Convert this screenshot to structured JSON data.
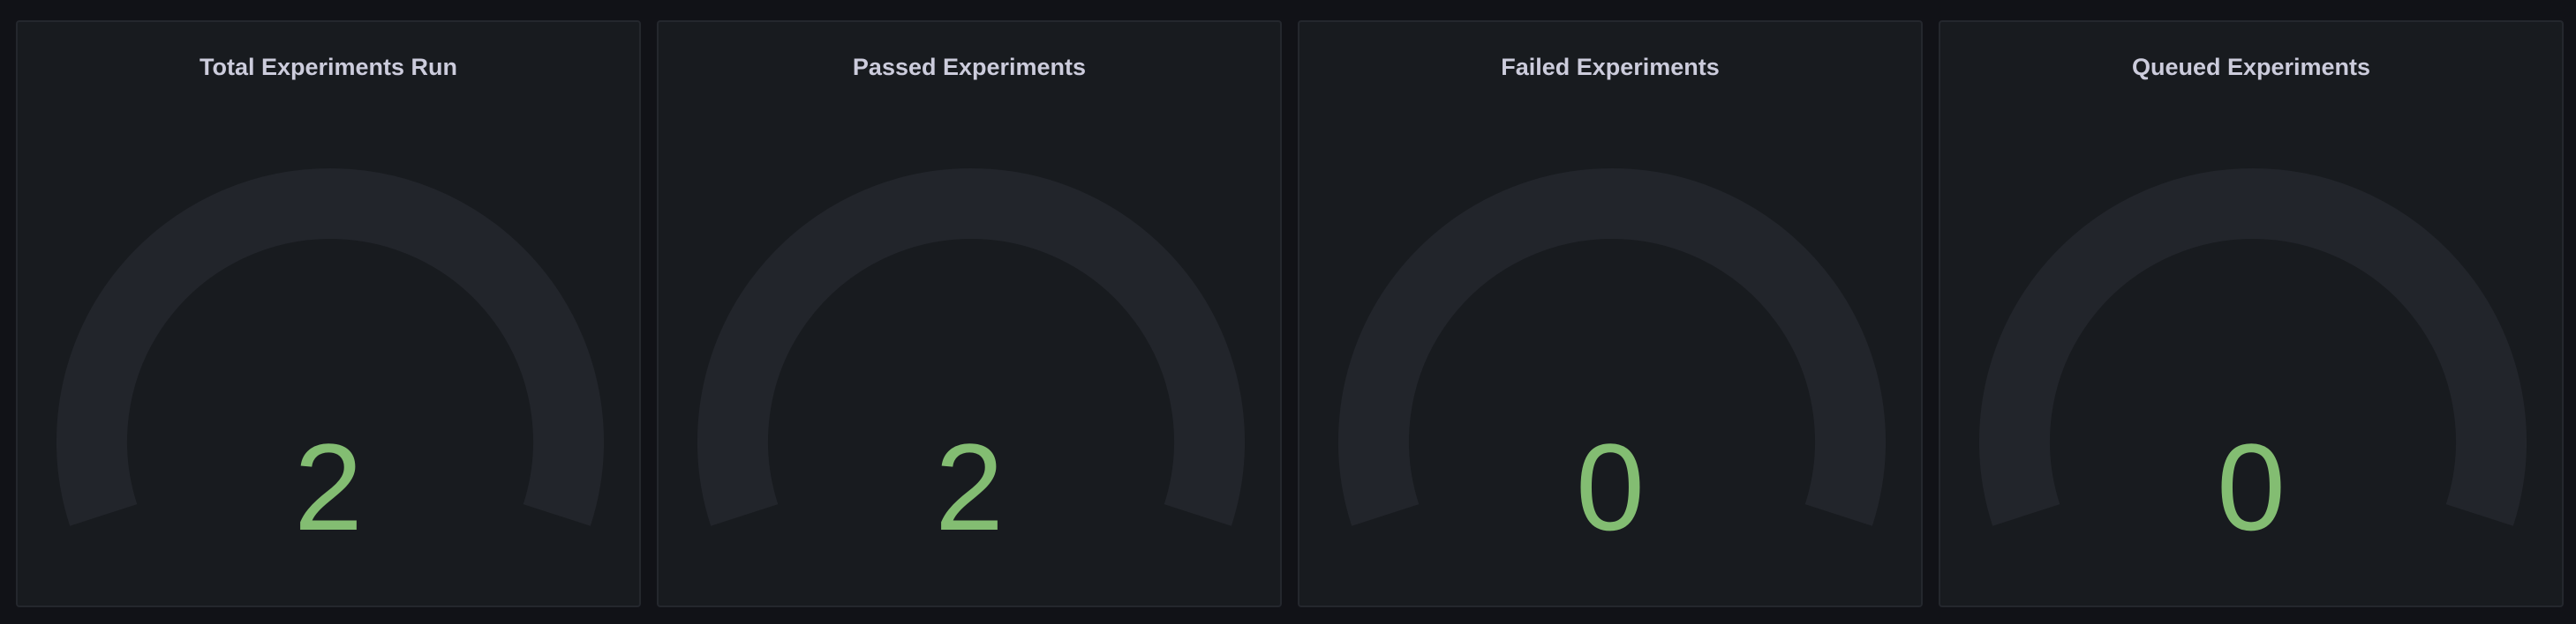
{
  "colors": {
    "value": "#83bd72",
    "track": "#22252b",
    "panel": "#181b1f",
    "background": "#111217"
  },
  "panels": [
    {
      "title": "Total Experiments Run",
      "value": "2"
    },
    {
      "title": "Passed Experiments",
      "value": "2"
    },
    {
      "title": "Failed Experiments",
      "value": "0"
    },
    {
      "title": "Queued Experiments",
      "value": "0"
    }
  ]
}
